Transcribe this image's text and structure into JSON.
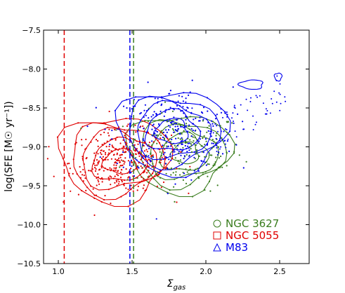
{
  "chart_data": {
    "type": "scatter",
    "xlabel": "Σ_gas",
    "xlabel_main": "Σ",
    "xlabel_sub": "gas",
    "ylabel": "log(SFE [M☉ yr⁻¹])",
    "xlim": [
      0.9,
      2.7
    ],
    "ylim": [
      -10.5,
      -7.5
    ],
    "xticks": [
      "1.0",
      "1.5",
      "2.0",
      "2.5"
    ],
    "yticks": [
      "−7.5",
      "−8.0",
      "−8.5",
      "−9.0",
      "−9.5",
      "−10.0",
      "−10.5"
    ],
    "grid": false,
    "legend_position": "lower-right",
    "colors": {
      "NGC 3627": "#3a7d1e",
      "NGC 5055": "#e00000",
      "M83": "#0000ee"
    },
    "thresholds": [
      {
        "series": "NGC 5055",
        "x": 1.04,
        "color": "#e00000"
      },
      {
        "series": "M83",
        "x": 1.485,
        "color": "#0000ee"
      },
      {
        "series": "NGC 3627",
        "x": 1.51,
        "color": "#3a7d1e"
      }
    ],
    "series": [
      {
        "name": "NGC 3627",
        "marker": "circle",
        "color": "#3a7d1e",
        "center": [
          1.85,
          -9.05
        ],
        "spread": [
          0.2,
          0.25
        ],
        "n_points": 180,
        "contours": [
          {
            "cx": 1.82,
            "cy": -9.08,
            "rx": 0.35,
            "ry": 0.5
          },
          {
            "cx": 1.83,
            "cy": -9.08,
            "rx": 0.29,
            "ry": 0.42
          },
          {
            "cx": 1.84,
            "cy": -9.08,
            "rx": 0.23,
            "ry": 0.33
          },
          {
            "cx": 1.85,
            "cy": -9.08,
            "rx": 0.16,
            "ry": 0.24
          },
          {
            "cx": 1.86,
            "cy": -9.08,
            "rx": 0.09,
            "ry": 0.14
          }
        ]
      },
      {
        "name": "NGC 5055",
        "marker": "square",
        "color": "#e00000",
        "center": [
          1.42,
          -9.2
        ],
        "spread": [
          0.17,
          0.2
        ],
        "n_points": 320,
        "contours": [
          {
            "cx": 1.38,
            "cy": -9.15,
            "rx": 0.37,
            "ry": 0.55
          },
          {
            "cx": 1.39,
            "cy": -9.16,
            "rx": 0.31,
            "ry": 0.46
          },
          {
            "cx": 1.4,
            "cy": -9.17,
            "rx": 0.25,
            "ry": 0.37
          },
          {
            "cx": 1.41,
            "cy": -9.18,
            "rx": 0.18,
            "ry": 0.27
          },
          {
            "cx": 1.42,
            "cy": -9.19,
            "rx": 0.11,
            "ry": 0.16
          }
        ]
      },
      {
        "name": "M83",
        "marker": "triangle",
        "color": "#0000ee",
        "center": [
          1.78,
          -8.8
        ],
        "spread": [
          0.2,
          0.28
        ],
        "n_points": 260,
        "contours": [
          {
            "cx": 1.77,
            "cy": -8.8,
            "rx": 0.37,
            "ry": 0.53
          },
          {
            "cx": 1.77,
            "cy": -8.8,
            "rx": 0.31,
            "ry": 0.44
          },
          {
            "cx": 1.77,
            "cy": -8.8,
            "rx": 0.25,
            "ry": 0.35
          },
          {
            "cx": 1.77,
            "cy": -8.8,
            "rx": 0.18,
            "ry": 0.26
          },
          {
            "cx": 1.77,
            "cy": -8.8,
            "rx": 0.11,
            "ry": 0.16
          },
          {
            "cx": 2.31,
            "cy": -8.2,
            "rx": 0.08,
            "ry": 0.06
          },
          {
            "cx": 2.49,
            "cy": -8.1,
            "rx": 0.025,
            "ry": 0.05
          }
        ]
      }
    ],
    "legend": [
      {
        "label": "NGC 3627",
        "marker": "circle",
        "color": "#3a7d1e"
      },
      {
        "label": "NGC 5055",
        "marker": "square",
        "color": "#e00000"
      },
      {
        "label": "M83",
        "marker": "triangle",
        "color": "#0000ee"
      }
    ]
  }
}
